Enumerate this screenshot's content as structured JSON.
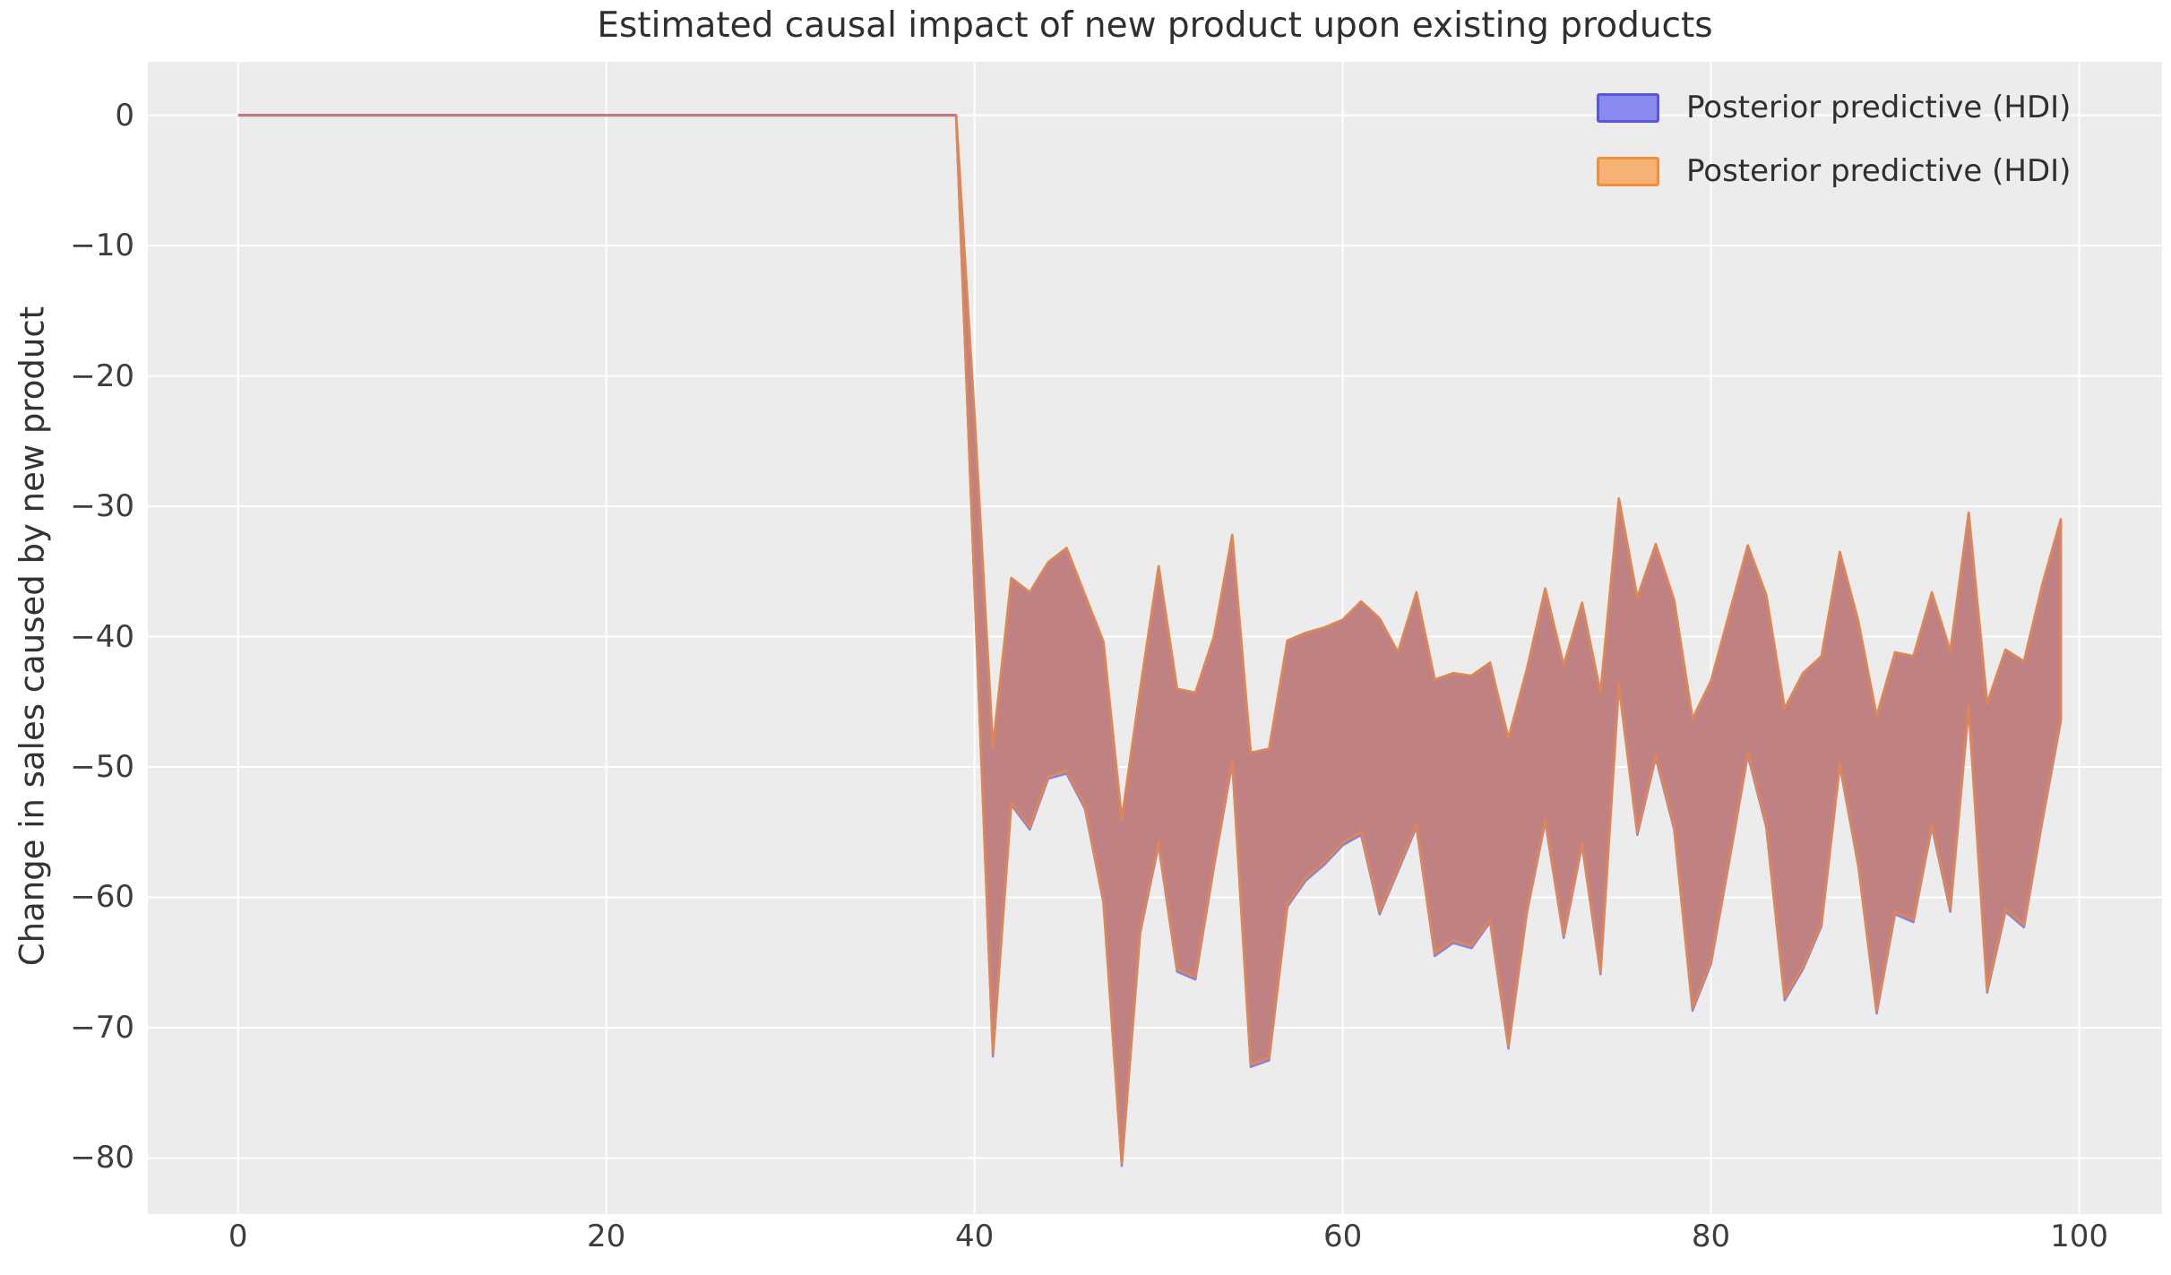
{
  "title": "Estimated causal impact of new product upon existing products",
  "legend": [
    {
      "label": "Posterior predictive (HDI)",
      "fill": "#8a8aee",
      "border": "#5757dd"
    },
    {
      "label": "Posterior predictive (HDI)",
      "fill": "#f6b175",
      "border": "#ee9138"
    }
  ],
  "colors": {
    "figure_bg": "#ffffff",
    "plot_bg": "#ececec",
    "grid": "#ffffff",
    "band_fill": "#c08183",
    "band_edge_orange": "#dd8757",
    "band_fill_blue": "#8d86e0",
    "band_edge_blue": "#8b7fd8",
    "pre_line": "#c4797d"
  },
  "chart_data": {
    "type": "area",
    "title": "Estimated causal impact of new product upon existing products",
    "xlabel": "",
    "ylabel": "Change in sales caused by new product",
    "xlim": [
      -4.9,
      104.5
    ],
    "ylim": [
      -84.3,
      4.1
    ],
    "xticks": [
      0,
      20,
      40,
      60,
      80,
      100
    ],
    "yticks": [
      0,
      -10,
      -20,
      -30,
      -40,
      -50,
      -60,
      -70,
      -80
    ],
    "grid": true,
    "legend_position": "upper right",
    "series": [
      {
        "name": "Posterior predictive (HDI) pre-period",
        "type": "line",
        "x": [
          0,
          39
        ],
        "y": [
          0,
          0
        ]
      },
      {
        "name": "Posterior predictive (HDI) post-period band",
        "type": "band",
        "x": [
          39,
          40,
          41,
          42,
          43,
          44,
          45,
          46,
          47,
          48,
          49,
          50,
          51,
          52,
          53,
          54,
          55,
          56,
          57,
          58,
          59,
          60,
          61,
          62,
          63,
          64,
          65,
          66,
          67,
          68,
          69,
          70,
          71,
          72,
          73,
          74,
          75,
          76,
          77,
          78,
          79,
          80,
          81,
          82,
          83,
          84,
          85,
          86,
          87,
          88,
          89,
          90,
          91,
          92,
          93,
          94,
          95,
          96,
          97,
          98,
          99
        ],
        "upper": [
          0,
          -23,
          -48.5,
          -35.5,
          -36.6,
          -34.3,
          -33.2,
          -36.8,
          -40.4,
          -54,
          -44,
          -34.6,
          -44,
          -44.3,
          -40,
          -32.2,
          -48.9,
          -48.6,
          -40.3,
          -39.7,
          -39.3,
          -38.7,
          -37.3,
          -38.6,
          -41.2,
          -36.6,
          -43.3,
          -42.8,
          -43,
          -42,
          -47.8,
          -42.5,
          -36.3,
          -42.2,
          -37.4,
          -44.3,
          -29.4,
          -37,
          -32.9,
          -37.2,
          -46.3,
          -43.4,
          -38.2,
          -33,
          -36.8,
          -45.5,
          -42.8,
          -41.5,
          -33.5,
          -38.8,
          -46.1,
          -41.2,
          -41.5,
          -36.6,
          -41.1,
          -30.5,
          -45.1,
          -41,
          -41.9,
          -36,
          -31
        ],
        "lower": [
          0,
          -36,
          -72,
          -52.7,
          -54.6,
          -50.7,
          -50.3,
          -53,
          -60.2,
          -80.4,
          -62.5,
          -55.8,
          -65.5,
          -66.1,
          -57.5,
          -49.5,
          -72.8,
          -72.3,
          -60.5,
          -58.5,
          -57.3,
          -55.8,
          -55,
          -61.1,
          -57.8,
          -54.4,
          -64.3,
          -63.3,
          -63.7,
          -61.7,
          -71.4,
          -61,
          -54,
          -62.9,
          -55.8,
          -65.7,
          -43.6,
          -55,
          -49.1,
          -54.6,
          -68.5,
          -64.9,
          -57,
          -48.9,
          -54.4,
          -67.7,
          -65.3,
          -62,
          -49.7,
          -57.4,
          -68.7,
          -61.1,
          -61.7,
          -54.4,
          -60.9,
          -45.3,
          -67.1,
          -60.9,
          -62.1,
          -54,
          -46.3
        ]
      }
    ]
  }
}
